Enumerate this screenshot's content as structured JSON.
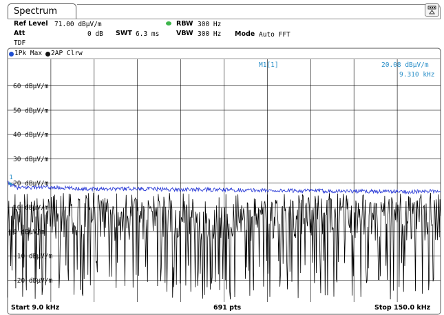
{
  "tab_title": "Spectrum",
  "header": {
    "ref_level_label": "Ref Level",
    "ref_level_value": "71.00 dBµV/m",
    "att_label": "Att",
    "att_value": "0 dB",
    "swt_label": "SWT",
    "swt_value": "6.3 ms",
    "rbw_label": "RBW",
    "rbw_value": "300 Hz",
    "vbw_label": "VBW",
    "vbw_value": "300 Hz",
    "mode_label": "Mode",
    "mode_value": "Auto FFT",
    "tdf_label": "TDF"
  },
  "traces": [
    {
      "label": "1Pk Max",
      "color": "#1f4fd1"
    },
    {
      "label": "2AP Clrw",
      "color": "#000000"
    }
  ],
  "marker": {
    "name": "M1[1]",
    "number": "1",
    "level": "20.08 dBµV/m",
    "freq": "9.310 kHz",
    "color": "#2a8fc8"
  },
  "footer": {
    "start": "Start 9.0 kHz",
    "points": "691 pts",
    "stop": "Stop 150.0 kHz"
  },
  "colors": {
    "trace1": "#2f3fd8",
    "trace2": "#000000",
    "grid": "#000000",
    "marker_text": "#2a8fc8"
  },
  "chart_data": {
    "type": "line",
    "xlabel": "",
    "ylabel": "",
    "xlim": [
      9.0,
      150.0
    ],
    "ylim": [
      -29,
      71
    ],
    "y_ticks": [
      60,
      50,
      40,
      30,
      20,
      10,
      0,
      -10,
      -20
    ],
    "y_tick_labels": [
      "60 dBµV/m",
      "50 dBµV/m",
      "40 dBµV/m",
      "30 dBµV/m",
      "20 dBµV/m",
      "10 dBµV/m",
      "0 dBµV/m",
      "-10 dBµV/m",
      "-20 dBµV/m"
    ],
    "grid": true,
    "series": [
      {
        "name": "1Pk Max",
        "x": [
          9.0,
          12.0,
          20.0,
          35.0,
          50.0,
          65.0,
          80.0,
          95.0,
          110.0,
          125.0,
          140.0,
          150.0
        ],
        "values": [
          20.1,
          18.0,
          18.3,
          17.6,
          17.7,
          17.3,
          17.2,
          16.9,
          16.8,
          16.6,
          16.4,
          16.6
        ]
      },
      {
        "name": "2AP Clrw",
        "x": [
          9.0,
          12.0,
          20.0,
          35.0,
          50.0,
          65.0,
          80.0,
          95.0,
          110.0,
          125.0,
          140.0,
          150.0
        ],
        "values": [
          0.0,
          10.0,
          4.0,
          -6.0,
          2.0,
          -13.0,
          6.0,
          -4.0,
          0.0,
          -22.0,
          8.0,
          4.0
        ]
      }
    ]
  }
}
